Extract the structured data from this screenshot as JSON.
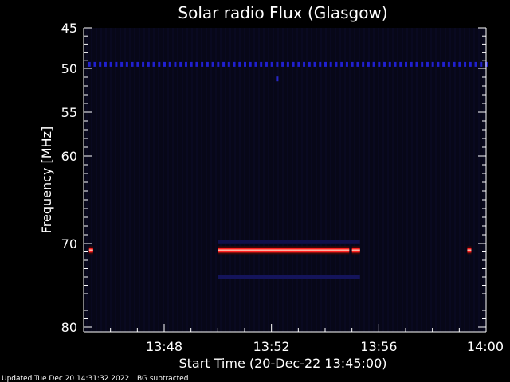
{
  "chart_data": {
    "type": "heatmap",
    "title": "Solar radio Flux (Glasgow)",
    "ylabel": "Frequency [MHz]",
    "xlabel": "Start Time (20-Dec-22 13:45:00)",
    "x_range_minutes": [
      13.0,
      15.0
    ],
    "x_ticks": [
      {
        "label": "13:48",
        "minute": 48
      },
      {
        "label": "13:52",
        "minute": 52
      },
      {
        "label": "13:56",
        "minute": 56
      },
      {
        "label": "14:00",
        "minute": 60
      }
    ],
    "y_range_mhz": [
      45,
      80
    ],
    "y_ticks": [
      {
        "label": "45",
        "value": 45
      },
      {
        "label": "50",
        "value": 50
      },
      {
        "label": "55",
        "value": 55
      },
      {
        "label": "60",
        "value": 60
      },
      {
        "label": "70",
        "value": 70
      },
      {
        "label": "80",
        "value": 80
      }
    ],
    "background_subtracted": true,
    "features": [
      {
        "kind": "dotted_line",
        "freq_mhz": 49.5,
        "from_minute": 45.2,
        "to_minute": 60.0,
        "color": "#2020d0"
      },
      {
        "kind": "dot",
        "freq_mhz": 51.2,
        "minute": 52.2,
        "color": "#2828c8"
      },
      {
        "kind": "band",
        "freq_mhz": 70.8,
        "from_minute": 50.0,
        "to_minute": 54.9,
        "color": "#ff2020"
      },
      {
        "kind": "band",
        "freq_mhz": 70.8,
        "from_minute": 55.0,
        "to_minute": 55.3,
        "color": "#ff2020"
      },
      {
        "kind": "band",
        "freq_mhz": 70.8,
        "from_minute": 45.2,
        "to_minute": 45.35,
        "color": "#ff2020"
      },
      {
        "kind": "band",
        "freq_mhz": 70.8,
        "from_minute": 59.3,
        "to_minute": 59.45,
        "color": "#ff2020"
      },
      {
        "kind": "faint_line",
        "freq_mhz": 69.8,
        "from_minute": 50.0,
        "to_minute": 55.3,
        "color": "#10104a"
      },
      {
        "kind": "faint_line",
        "freq_mhz": 74.0,
        "from_minute": 50.0,
        "to_minute": 55.3,
        "color": "#14145a"
      }
    ]
  },
  "footer": {
    "updated": "Updated Tue Dec 20 14:31:32 2022",
    "note": "BG subtracted"
  },
  "colors": {
    "background": "#000000",
    "plot_background": "#070718",
    "axis": "#ffffff"
  }
}
